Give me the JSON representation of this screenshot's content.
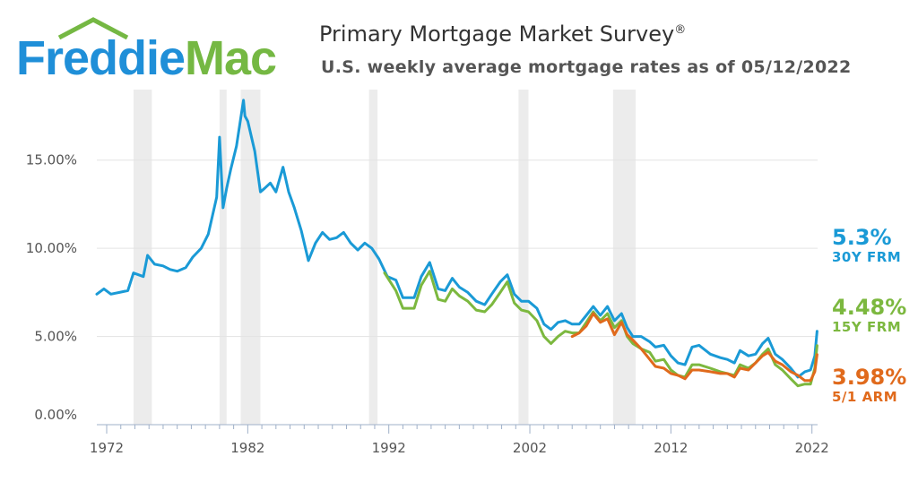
{
  "header": {
    "logo": {
      "word1": "Freddie",
      "word2": "Mac",
      "color1": "#1f8fd8",
      "color2": "#75b843"
    },
    "title": "Primary Mortgage Market Survey",
    "title_mark": "®",
    "subtitle": "U.S. weekly average mortgage rates as of 05/12/2022"
  },
  "callouts": [
    {
      "value": "5.3%",
      "label": "30Y FRM",
      "color": "#1a9ad6"
    },
    {
      "value": "4.48%",
      "label": "15Y FRM",
      "color": "#7cb83f"
    },
    {
      "value": "3.98%",
      "label": "5/1 ARM",
      "color": "#e06a1c"
    }
  ],
  "chart_data": {
    "type": "line",
    "title": "Primary Mortgage Market Survey",
    "subtitle": "U.S. weekly average mortgage rates as of 05/12/2022",
    "xlim": [
      1971.3,
      2022.4
    ],
    "ylim": [
      0,
      19
    ],
    "x_ticks": [
      {
        "value": 1972,
        "label": "1972"
      },
      {
        "value": 1982,
        "label": "1982"
      },
      {
        "value": 1992,
        "label": "1992"
      },
      {
        "value": 2002,
        "label": "2002"
      },
      {
        "value": 2012,
        "label": "2012"
      },
      {
        "value": 2022,
        "label": "2022"
      }
    ],
    "y_ticks": [
      {
        "value": 0,
        "label": "0.00%"
      },
      {
        "value": 5,
        "label": "5.00%"
      },
      {
        "value": 10,
        "label": "10.00%"
      },
      {
        "value": 15,
        "label": "15.00%"
      }
    ],
    "grid": "horizontal",
    "recessions": [
      [
        1973.9,
        1975.2
      ],
      [
        1980.0,
        1980.5
      ],
      [
        1981.5,
        1982.9
      ],
      [
        1990.6,
        1991.2
      ],
      [
        2001.2,
        2001.9
      ],
      [
        2007.9,
        2009.5
      ]
    ],
    "series": [
      {
        "name": "30Y FRM",
        "color": "#1a9ad6",
        "x": [
          1971.3,
          1971.8,
          1972.3,
          1972.9,
          1973.5,
          1973.9,
          1974.6,
          1974.9,
          1975.4,
          1976.0,
          1976.5,
          1977.0,
          1977.6,
          1978.1,
          1978.7,
          1979.2,
          1979.8,
          1980.0,
          1980.25,
          1980.5,
          1980.8,
          1981.2,
          1981.7,
          1981.8,
          1982.0,
          1982.5,
          1982.9,
          1983.2,
          1983.6,
          1984.0,
          1984.5,
          1984.9,
          1985.3,
          1985.8,
          1986.3,
          1986.8,
          1987.3,
          1987.8,
          1988.3,
          1988.8,
          1989.3,
          1989.8,
          1990.3,
          1990.8,
          1991.3,
          1991.9,
          1992.5,
          1993.0,
          1993.8,
          1994.3,
          1994.9,
          1995.5,
          1996.0,
          1996.5,
          1997.0,
          1997.6,
          1998.2,
          1998.8,
          1999.3,
          1999.9,
          2000.4,
          2000.9,
          2001.4,
          2001.9,
          2002.5,
          2003.0,
          2003.5,
          2004.0,
          2004.5,
          2005.0,
          2005.5,
          2006.0,
          2006.5,
          2007.0,
          2007.5,
          2008.0,
          2008.5,
          2008.9,
          2009.3,
          2009.9,
          2010.5,
          2010.9,
          2011.5,
          2012.0,
          2012.5,
          2013.0,
          2013.5,
          2014.0,
          2014.8,
          2015.5,
          2016.0,
          2016.5,
          2016.9,
          2017.5,
          2018.0,
          2018.5,
          2018.9,
          2019.4,
          2019.9,
          2020.5,
          2021.0,
          2021.5,
          2021.9,
          2022.2,
          2022.36
        ],
        "y": [
          7.4,
          7.7,
          7.4,
          7.5,
          7.6,
          8.6,
          8.4,
          9.6,
          9.1,
          9.0,
          8.8,
          8.7,
          8.9,
          9.5,
          10.0,
          10.8,
          12.9,
          16.3,
          12.3,
          13.4,
          14.5,
          15.8,
          18.4,
          17.5,
          17.2,
          15.5,
          13.2,
          13.4,
          13.7,
          13.2,
          14.6,
          13.2,
          12.3,
          11.0,
          9.3,
          10.3,
          10.9,
          10.5,
          10.6,
          10.9,
          10.3,
          9.9,
          10.3,
          10.0,
          9.4,
          8.4,
          8.2,
          7.2,
          7.2,
          8.4,
          9.2,
          7.7,
          7.6,
          8.3,
          7.8,
          7.5,
          7.0,
          6.8,
          7.4,
          8.1,
          8.5,
          7.4,
          7.0,
          7.0,
          6.6,
          5.7,
          5.4,
          5.8,
          5.9,
          5.7,
          5.7,
          6.2,
          6.7,
          6.2,
          6.7,
          5.9,
          6.3,
          5.5,
          5.0,
          5.0,
          4.7,
          4.4,
          4.5,
          3.9,
          3.5,
          3.4,
          4.4,
          4.5,
          4.0,
          3.8,
          3.7,
          3.5,
          4.2,
          3.9,
          4.0,
          4.6,
          4.9,
          4.0,
          3.7,
          3.2,
          2.7,
          3.0,
          3.1,
          3.9,
          5.3
        ]
      },
      {
        "name": "15Y FRM",
        "color": "#7cb83f",
        "x": [
          1991.7,
          1992.5,
          1993.0,
          1993.8,
          1994.3,
          1994.9,
          1995.5,
          1996.0,
          1996.5,
          1997.0,
          1997.6,
          1998.2,
          1998.8,
          1999.3,
          1999.9,
          2000.4,
          2000.9,
          2001.4,
          2001.9,
          2002.5,
          2003.0,
          2003.5,
          2004.0,
          2004.5,
          2005.0,
          2005.5,
          2006.0,
          2006.5,
          2007.0,
          2007.5,
          2008.0,
          2008.5,
          2008.9,
          2009.3,
          2009.9,
          2010.5,
          2010.9,
          2011.5,
          2012.0,
          2012.5,
          2013.0,
          2013.5,
          2014.0,
          2014.8,
          2015.5,
          2016.0,
          2016.5,
          2016.9,
          2017.5,
          2018.0,
          2018.5,
          2018.9,
          2019.4,
          2019.9,
          2020.5,
          2021.0,
          2021.5,
          2021.9,
          2022.2,
          2022.36
        ],
        "y": [
          8.6,
          7.6,
          6.6,
          6.6,
          7.9,
          8.7,
          7.1,
          7.0,
          7.7,
          7.3,
          7.0,
          6.5,
          6.4,
          6.8,
          7.5,
          8.1,
          6.9,
          6.5,
          6.4,
          5.9,
          5.0,
          4.6,
          5.0,
          5.3,
          5.2,
          5.2,
          5.8,
          6.4,
          5.9,
          6.3,
          5.5,
          5.9,
          5.0,
          4.6,
          4.3,
          4.1,
          3.6,
          3.7,
          3.1,
          2.8,
          2.7,
          3.4,
          3.4,
          3.2,
          3.0,
          2.9,
          2.8,
          3.4,
          3.2,
          3.5,
          4.0,
          4.3,
          3.4,
          3.1,
          2.6,
          2.2,
          2.3,
          2.3,
          3.2,
          4.48
        ]
      },
      {
        "name": "5/1 ARM",
        "color": "#e06a1c",
        "x": [
          2005.0,
          2005.5,
          2006.0,
          2006.5,
          2007.0,
          2007.5,
          2008.0,
          2008.5,
          2008.9,
          2009.3,
          2009.9,
          2010.5,
          2010.9,
          2011.5,
          2012.0,
          2012.5,
          2013.0,
          2013.5,
          2014.0,
          2014.8,
          2015.5,
          2016.0,
          2016.5,
          2016.9,
          2017.5,
          2018.0,
          2018.5,
          2018.9,
          2019.4,
          2019.9,
          2020.5,
          2021.0,
          2021.5,
          2021.9,
          2022.2,
          2022.36
        ],
        "y": [
          5.0,
          5.2,
          5.6,
          6.3,
          5.8,
          6.0,
          5.1,
          5.8,
          5.1,
          4.8,
          4.3,
          3.7,
          3.3,
          3.2,
          2.9,
          2.8,
          2.6,
          3.1,
          3.1,
          3.0,
          2.9,
          2.9,
          2.7,
          3.2,
          3.1,
          3.5,
          3.9,
          4.1,
          3.6,
          3.4,
          3.0,
          2.8,
          2.5,
          2.5,
          3.0,
          3.98
        ]
      }
    ]
  }
}
